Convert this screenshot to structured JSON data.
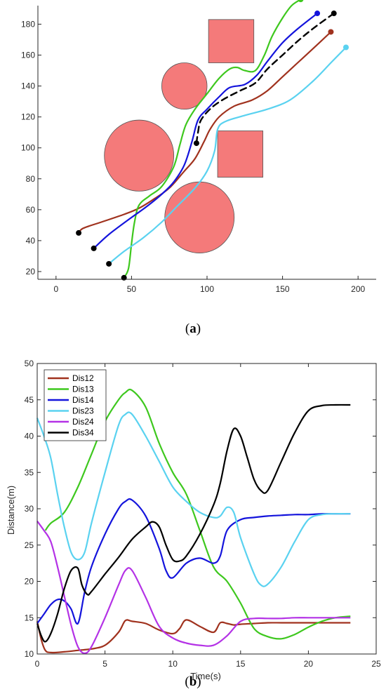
{
  "colors": {
    "red": "#a0321e",
    "green": "#3ec81e",
    "blue": "#1414dc",
    "cyan": "#5ad2f0",
    "purple": "#b432e6",
    "black": "#000000",
    "obstacle": "#f47a7a",
    "axis": "#262626"
  },
  "chart_data": [
    {
      "type": "line",
      "panel_label": "(a)",
      "caption_letter": "a",
      "xlim": [
        -12,
        212
      ],
      "ylim": [
        15,
        192
      ],
      "xticks": [
        0,
        50,
        100,
        150,
        200
      ],
      "yticks": [
        20,
        40,
        60,
        80,
        100,
        120,
        140,
        160,
        180
      ],
      "obstacles": [
        {
          "shape": "square",
          "cx": 116,
          "cy": 169,
          "w": 30,
          "h": 28
        },
        {
          "shape": "circle",
          "cx": 85,
          "cy": 140,
          "r": 15
        },
        {
          "shape": "square",
          "cx": 122,
          "cy": 96,
          "w": 30,
          "h": 30
        },
        {
          "shape": "circle",
          "cx": 55,
          "cy": 95,
          "r": 23
        },
        {
          "shape": "circle",
          "cx": 95,
          "cy": 55,
          "r": 23
        }
      ],
      "series": [
        {
          "color": "red",
          "start": [
            15,
            45
          ],
          "end": [
            182,
            175
          ],
          "points": [
            [
              15,
              45
            ],
            [
              18,
              48
            ],
            [
              30,
              52
            ],
            [
              45,
              57
            ],
            [
              55,
              61
            ],
            [
              65,
              67
            ],
            [
              75,
              74
            ],
            [
              85,
              85
            ],
            [
              92,
              93
            ],
            [
              98,
              104
            ],
            [
              102,
              112
            ],
            [
              108,
              120
            ],
            [
              118,
              127
            ],
            [
              130,
              131
            ],
            [
              140,
              137
            ],
            [
              150,
              146
            ],
            [
              160,
              155
            ],
            [
              170,
              164
            ],
            [
              182,
              175
            ]
          ]
        },
        {
          "color": "green",
          "start": [
            45,
            16
          ],
          "end": [
            162,
            196
          ],
          "points": [
            [
              45,
              16
            ],
            [
              48,
              22
            ],
            [
              50,
              38
            ],
            [
              52,
              52
            ],
            [
              55,
              63
            ],
            [
              62,
              69
            ],
            [
              70,
              75
            ],
            [
              78,
              88
            ],
            [
              82,
              102
            ],
            [
              86,
              115
            ],
            [
              92,
              125
            ],
            [
              100,
              135
            ],
            [
              108,
              145
            ],
            [
              115,
              151
            ],
            [
              120,
              152
            ],
            [
              125,
              150
            ],
            [
              132,
              150
            ],
            [
              138,
              160
            ],
            [
              143,
              172
            ],
            [
              150,
              184
            ],
            [
              156,
              192
            ],
            [
              162,
              196
            ]
          ]
        },
        {
          "color": "blue",
          "start": [
            25,
            35
          ],
          "end": [
            173,
            187
          ],
          "points": [
            [
              25,
              35
            ],
            [
              35,
              44
            ],
            [
              50,
              55
            ],
            [
              60,
              62
            ],
            [
              70,
              70
            ],
            [
              78,
              78
            ],
            [
              85,
              89
            ],
            [
              90,
              104
            ],
            [
              94,
              118
            ],
            [
              100,
              125
            ],
            [
              108,
              133
            ],
            [
              115,
              139
            ],
            [
              125,
              141
            ],
            [
              133,
              147
            ],
            [
              140,
              156
            ],
            [
              150,
              168
            ],
            [
              160,
              177
            ],
            [
              173,
              187
            ]
          ]
        },
        {
          "color": "cyan",
          "start": [
            35,
            25
          ],
          "end": [
            192,
            165
          ],
          "points": [
            [
              35,
              25
            ],
            [
              45,
              33
            ],
            [
              58,
              42
            ],
            [
              70,
              52
            ],
            [
              80,
              62
            ],
            [
              92,
              74
            ],
            [
              100,
              85
            ],
            [
              105,
              98
            ],
            [
              107,
              112
            ],
            [
              112,
              117
            ],
            [
              125,
              121
            ],
            [
              140,
              125
            ],
            [
              155,
              131
            ],
            [
              170,
              143
            ],
            [
              182,
              155
            ],
            [
              192,
              165
            ]
          ]
        },
        {
          "color": "black",
          "dashed": true,
          "start": [
            93,
            103
          ],
          "end": [
            184,
            187
          ],
          "points": [
            [
              93,
              103
            ],
            [
              94,
              110
            ],
            [
              96,
              118
            ],
            [
              103,
              126
            ],
            [
              112,
              132
            ],
            [
              122,
              137
            ],
            [
              132,
              142
            ],
            [
              140,
              151
            ],
            [
              150,
              160
            ],
            [
              160,
              169
            ],
            [
              170,
              177
            ],
            [
              184,
              187
            ]
          ]
        }
      ]
    },
    {
      "type": "line",
      "panel_label": "(b)",
      "caption_letter": "b",
      "xlabel": "Time(s)",
      "ylabel": "Distance(m)",
      "xlim": [
        0,
        25
      ],
      "ylim": [
        10,
        50
      ],
      "xticks": [
        0,
        5,
        10,
        15,
        20,
        25
      ],
      "yticks": [
        10,
        15,
        20,
        25,
        30,
        35,
        40,
        45,
        50
      ],
      "legend_position": "top-left",
      "series": [
        {
          "name": "Dis12",
          "color": "red",
          "x": [
            0,
            0.3,
            0.6,
            1,
            2,
            3,
            4,
            5,
            6,
            6.5,
            7,
            8,
            9,
            10,
            10.5,
            11,
            12,
            13,
            13.5,
            14,
            14.5,
            15,
            16,
            17,
            18,
            19,
            20,
            21,
            22,
            23.1
          ],
          "y": [
            14.5,
            12,
            10.5,
            10.2,
            10.3,
            10.5,
            10.7,
            11.2,
            13,
            14.6,
            14.5,
            14.2,
            13.3,
            12.8,
            13.5,
            14.7,
            13.8,
            13,
            14.3,
            14.2,
            14,
            14.1,
            14.2,
            14.3,
            14.3,
            14.3,
            14.3,
            14.3,
            14.3,
            14.3
          ]
        },
        {
          "name": "Dis13",
          "color": "green",
          "x": [
            0.6,
            1,
            2,
            3,
            4,
            5,
            6,
            6.5,
            7,
            8,
            9,
            10,
            11,
            12,
            13,
            14,
            15,
            16,
            17,
            18,
            19,
            20,
            21,
            22,
            23.1
          ],
          "y": [
            27,
            28,
            29.5,
            33,
            37.5,
            42,
            45,
            46,
            46.3,
            44,
            39,
            35,
            32,
            27,
            22,
            20,
            17,
            13.5,
            12.4,
            12.1,
            12.7,
            13.7,
            14.5,
            15,
            15.2
          ]
        },
        {
          "name": "Dis14",
          "color": "blue",
          "x": [
            0,
            0.5,
            1,
            1.5,
            2,
            2.5,
            3,
            3.5,
            4,
            5,
            6,
            6.5,
            7,
            8,
            9,
            9.5,
            10,
            11,
            12,
            13,
            13.5,
            14,
            15,
            16,
            17,
            18,
            19,
            20,
            21,
            22,
            23.1
          ],
          "y": [
            14.2,
            15.5,
            16.8,
            17.5,
            17.3,
            16.2,
            14.2,
            18.5,
            22,
            26.5,
            30,
            31,
            31.2,
            29,
            24.5,
            21.5,
            20.5,
            22.5,
            23.2,
            22.5,
            23.5,
            27,
            28.5,
            28.8,
            29,
            29.1,
            29.2,
            29.2,
            29.3,
            29.3,
            29.3
          ]
        },
        {
          "name": "Dis23",
          "color": "cyan",
          "x": [
            0,
            0.5,
            1,
            1.5,
            2,
            2.5,
            3,
            3.5,
            4,
            5,
            6,
            6.5,
            7,
            8,
            9,
            10,
            11,
            12,
            13,
            13.5,
            14,
            14.5,
            15,
            16,
            16.5,
            17,
            18,
            19,
            20,
            21,
            22,
            23.1
          ],
          "y": [
            42.5,
            40,
            37,
            32,
            27.5,
            24,
            23,
            24,
            28,
            35,
            41.5,
            43,
            43,
            40,
            36.5,
            33,
            31,
            29.5,
            28.8,
            29,
            30.2,
            29.5,
            26,
            21,
            19.5,
            19.6,
            22,
            25.5,
            28.5,
            29.2,
            29.3,
            29.3
          ]
        },
        {
          "name": "Dis24",
          "color": "purple",
          "x": [
            0,
            0.5,
            1,
            1.5,
            2,
            2.5,
            3,
            3.5,
            4,
            5,
            6,
            6.5,
            7,
            8,
            9,
            10,
            11,
            12,
            13,
            14,
            15,
            16,
            17,
            18,
            19,
            20,
            21,
            22,
            23.1
          ],
          "y": [
            28.3,
            27,
            25.5,
            22,
            18,
            14,
            11,
            10.1,
            11,
            15,
            19.5,
            21.5,
            21.5,
            17.8,
            13.8,
            12.2,
            11.5,
            11.2,
            11.2,
            12.5,
            14.5,
            14.9,
            14.9,
            14.9,
            15,
            15,
            15,
            15,
            15
          ]
        },
        {
          "name": "Dis34",
          "color": "black",
          "x": [
            0,
            0.3,
            0.6,
            1,
            1.5,
            2,
            2.5,
            3,
            3.3,
            3.7,
            4,
            5,
            6,
            7,
            8,
            8.5,
            9,
            9.5,
            10,
            10.5,
            11,
            12,
            13,
            13.5,
            14,
            14.5,
            15,
            15.5,
            16,
            16.5,
            17,
            18,
            19,
            20,
            21,
            22,
            23.1
          ],
          "y": [
            14.2,
            12.5,
            11.7,
            12.8,
            15.5,
            19,
            21.5,
            21.8,
            19.5,
            18.2,
            18.6,
            21,
            23.3,
            25.8,
            27.5,
            28.2,
            27.5,
            25,
            23,
            22.8,
            23.5,
            26.5,
            30.5,
            33.5,
            38,
            41,
            40,
            37,
            34,
            32.5,
            32.5,
            36.5,
            40.5,
            43.5,
            44.2,
            44.3,
            44.3
          ]
        }
      ]
    }
  ]
}
